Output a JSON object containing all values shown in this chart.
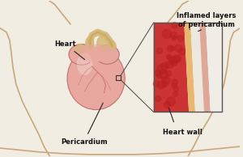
{
  "bg_color": "#f2ede3",
  "body_outline_color": "#c8a87a",
  "heart_fill_color": "#e8a8a0",
  "heart_edge_color": "#c07070",
  "vessel_color": "#d4b878",
  "peri_edge_color": "#d4b488",
  "inset_border_color": "#555555",
  "hw_color": "#cc3333",
  "hw_bubble_color": "#b82020",
  "layer1_color": "#e8b870",
  "fluid_color": "#ede8de",
  "layer2_color": "#dda898",
  "outer_color": "#f0ece6",
  "label_heart": "Heart",
  "label_pericardium": "Pericardium",
  "label_heart_wall": "Heart wall",
  "label_inflamed": "Inflamed layers\nof pericardium",
  "label_color": "#111111",
  "label_fontsize": 6.0,
  "line_color": "#222222",
  "vein_color": "#c06868"
}
